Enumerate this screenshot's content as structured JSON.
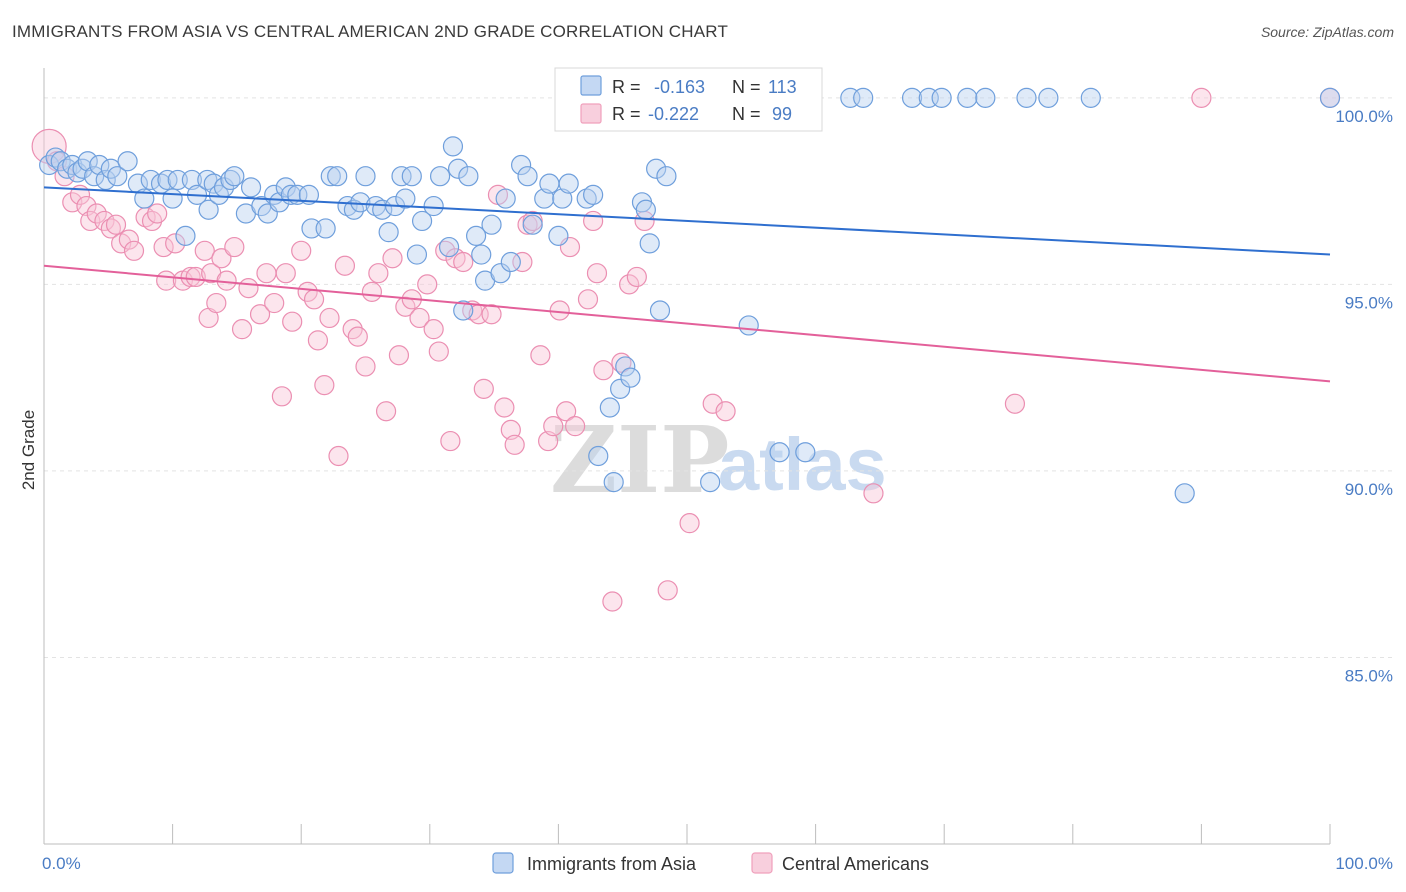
{
  "title": "IMMIGRANTS FROM ASIA VS CENTRAL AMERICAN 2ND GRADE CORRELATION CHART",
  "source": "Source: ZipAtlas.com",
  "colors": {
    "blue": "#6f9fdc",
    "blue_line": "#2f6fcf",
    "pink": "#f0a0bc",
    "pink_line": "#e3609a",
    "tick": "#4a7cc4"
  },
  "legend_box": {
    "rows": [
      {
        "r_label": "R =",
        "r_value": "-0.163",
        "n_label": "N =",
        "n_value": "113"
      },
      {
        "r_label": "R =",
        "r_value": "-0.222",
        "n_label": "N =",
        "n_value": "99"
      }
    ]
  },
  "watermark": {
    "zip": "ZIP",
    "atlas": "atlas"
  },
  "chart_data": {
    "type": "scatter",
    "title": "IMMIGRANTS FROM ASIA VS CENTRAL AMERICAN 2ND GRADE CORRELATION CHART",
    "xlabel": "",
    "ylabel": "2nd Grade",
    "xlim": [
      0,
      100
    ],
    "ylim": [
      80.0,
      100.8
    ],
    "x_tick_labels": [
      "0.0%",
      "100.0%"
    ],
    "y_ticks": [
      85,
      90,
      95,
      100
    ],
    "y_tick_labels": [
      "85.0%",
      "90.0%",
      "95.0%",
      "100.0%"
    ],
    "grid": true,
    "legend_position": "bottom",
    "series": [
      {
        "name": "Immigrants from Asia",
        "color": "#6f9fdc",
        "trend": {
          "x": [
            0,
            100
          ],
          "y": [
            97.6,
            95.8
          ]
        },
        "points": [
          [
            0.4,
            98.2
          ],
          [
            0.9,
            98.4
          ],
          [
            1.3,
            98.3
          ],
          [
            1.8,
            98.1
          ],
          [
            2.2,
            98.2
          ],
          [
            2.6,
            98.0
          ],
          [
            3.0,
            98.1
          ],
          [
            3.4,
            98.3
          ],
          [
            3.9,
            97.9
          ],
          [
            4.3,
            98.2
          ],
          [
            4.8,
            97.8
          ],
          [
            5.2,
            98.1
          ],
          [
            5.7,
            97.9
          ],
          [
            6.5,
            98.3
          ],
          [
            7.3,
            97.7
          ],
          [
            7.8,
            97.3
          ],
          [
            8.3,
            97.8
          ],
          [
            9.1,
            97.7
          ],
          [
            9.6,
            97.8
          ],
          [
            10.0,
            97.3
          ],
          [
            10.4,
            97.8
          ],
          [
            11.0,
            96.3
          ],
          [
            11.5,
            97.8
          ],
          [
            11.9,
            97.4
          ],
          [
            12.7,
            97.8
          ],
          [
            12.8,
            97.0
          ],
          [
            13.2,
            97.7
          ],
          [
            13.6,
            97.4
          ],
          [
            14.0,
            97.6
          ],
          [
            14.5,
            97.8
          ],
          [
            14.8,
            97.9
          ],
          [
            15.7,
            96.9
          ],
          [
            16.1,
            97.6
          ],
          [
            16.9,
            97.1
          ],
          [
            17.4,
            96.9
          ],
          [
            17.9,
            97.4
          ],
          [
            18.3,
            97.2
          ],
          [
            18.8,
            97.6
          ],
          [
            19.2,
            97.4
          ],
          [
            19.7,
            97.4
          ],
          [
            20.6,
            97.4
          ],
          [
            20.8,
            96.5
          ],
          [
            21.9,
            96.5
          ],
          [
            22.3,
            97.9
          ],
          [
            22.8,
            97.9
          ],
          [
            23.6,
            97.1
          ],
          [
            24.1,
            97.0
          ],
          [
            24.6,
            97.2
          ],
          [
            25.0,
            97.9
          ],
          [
            25.8,
            97.1
          ],
          [
            26.3,
            97.0
          ],
          [
            26.8,
            96.4
          ],
          [
            27.3,
            97.1
          ],
          [
            27.8,
            97.9
          ],
          [
            28.1,
            97.3
          ],
          [
            28.6,
            97.9
          ],
          [
            29.0,
            95.8
          ],
          [
            29.4,
            96.7
          ],
          [
            30.3,
            97.1
          ],
          [
            30.8,
            97.9
          ],
          [
            31.5,
            96.0
          ],
          [
            31.8,
            98.7
          ],
          [
            32.2,
            98.1
          ],
          [
            32.6,
            94.3
          ],
          [
            33.0,
            97.9
          ],
          [
            33.6,
            96.3
          ],
          [
            34.0,
            95.8
          ],
          [
            34.3,
            95.1
          ],
          [
            34.8,
            96.6
          ],
          [
            35.5,
            95.3
          ],
          [
            35.9,
            97.3
          ],
          [
            36.3,
            95.6
          ],
          [
            37.1,
            98.2
          ],
          [
            37.6,
            97.9
          ],
          [
            38.0,
            96.6
          ],
          [
            38.9,
            97.3
          ],
          [
            39.3,
            97.7
          ],
          [
            40.0,
            96.3
          ],
          [
            40.3,
            97.3
          ],
          [
            40.8,
            97.7
          ],
          [
            42.2,
            97.3
          ],
          [
            42.7,
            97.4
          ],
          [
            43.1,
            90.4
          ],
          [
            44.0,
            91.7
          ],
          [
            44.3,
            89.7
          ],
          [
            44.8,
            92.2
          ],
          [
            45.2,
            92.8
          ],
          [
            45.6,
            92.5
          ],
          [
            46.0,
            99.9
          ],
          [
            46.5,
            97.2
          ],
          [
            46.8,
            97.0
          ],
          [
            46.3,
            99.9
          ],
          [
            47.1,
            96.1
          ],
          [
            47.6,
            98.1
          ],
          [
            47.9,
            94.3
          ],
          [
            48.4,
            97.9
          ],
          [
            51.8,
            89.7
          ],
          [
            52.1,
            99.9
          ],
          [
            53.2,
            100.0
          ],
          [
            54.0,
            99.4
          ],
          [
            54.8,
            93.9
          ],
          [
            57.2,
            90.5
          ],
          [
            59.2,
            90.5
          ],
          [
            62.7,
            100.0
          ],
          [
            63.7,
            100.0
          ],
          [
            67.5,
            100.0
          ],
          [
            68.8,
            100.0
          ],
          [
            69.8,
            100.0
          ],
          [
            71.8,
            100.0
          ],
          [
            73.2,
            100.0
          ],
          [
            76.4,
            100.0
          ],
          [
            78.1,
            100.0
          ],
          [
            81.4,
            100.0
          ],
          [
            88.7,
            89.4
          ],
          [
            100.0,
            100.0
          ]
        ]
      },
      {
        "name": "Central Americans",
        "color": "#f0a0bc",
        "trend": {
          "x": [
            0,
            100
          ],
          "y": [
            95.5,
            92.4
          ]
        },
        "points": [
          [
            0.4,
            98.7
          ],
          [
            1.0,
            98.3
          ],
          [
            1.6,
            97.9
          ],
          [
            2.2,
            97.2
          ],
          [
            2.8,
            97.4
          ],
          [
            3.3,
            97.1
          ],
          [
            3.6,
            96.7
          ],
          [
            4.1,
            96.9
          ],
          [
            4.7,
            96.7
          ],
          [
            5.2,
            96.5
          ],
          [
            5.6,
            96.6
          ],
          [
            6.0,
            96.1
          ],
          [
            6.6,
            96.2
          ],
          [
            7.0,
            95.9
          ],
          [
            7.9,
            96.8
          ],
          [
            8.4,
            96.7
          ],
          [
            8.8,
            96.9
          ],
          [
            9.3,
            96.0
          ],
          [
            9.5,
            95.1
          ],
          [
            10.2,
            96.1
          ],
          [
            10.8,
            95.1
          ],
          [
            11.4,
            95.2
          ],
          [
            11.8,
            95.2
          ],
          [
            12.5,
            95.9
          ],
          [
            12.8,
            94.1
          ],
          [
            13.0,
            95.3
          ],
          [
            13.4,
            94.5
          ],
          [
            13.8,
            95.7
          ],
          [
            14.2,
            95.1
          ],
          [
            14.8,
            96.0
          ],
          [
            15.4,
            93.8
          ],
          [
            15.9,
            94.9
          ],
          [
            16.8,
            94.2
          ],
          [
            17.3,
            95.3
          ],
          [
            17.9,
            94.5
          ],
          [
            18.5,
            92.0
          ],
          [
            18.8,
            95.3
          ],
          [
            19.3,
            94.0
          ],
          [
            20.0,
            95.9
          ],
          [
            20.5,
            94.8
          ],
          [
            21.0,
            94.6
          ],
          [
            21.3,
            93.5
          ],
          [
            21.8,
            92.3
          ],
          [
            22.2,
            94.1
          ],
          [
            22.9,
            90.4
          ],
          [
            23.4,
            95.5
          ],
          [
            24.0,
            93.8
          ],
          [
            24.4,
            93.6
          ],
          [
            25.0,
            92.8
          ],
          [
            25.5,
            94.8
          ],
          [
            26.0,
            95.3
          ],
          [
            26.6,
            91.6
          ],
          [
            27.1,
            95.7
          ],
          [
            27.6,
            93.1
          ],
          [
            28.1,
            94.4
          ],
          [
            28.6,
            94.6
          ],
          [
            29.2,
            94.1
          ],
          [
            29.8,
            95.0
          ],
          [
            30.3,
            93.8
          ],
          [
            30.7,
            93.2
          ],
          [
            31.2,
            95.9
          ],
          [
            31.6,
            90.8
          ],
          [
            32.0,
            95.7
          ],
          [
            32.6,
            95.6
          ],
          [
            33.3,
            94.3
          ],
          [
            33.8,
            94.2
          ],
          [
            34.2,
            92.2
          ],
          [
            34.8,
            94.2
          ],
          [
            35.3,
            97.4
          ],
          [
            35.8,
            91.7
          ],
          [
            36.3,
            91.1
          ],
          [
            36.6,
            90.7
          ],
          [
            37.2,
            95.6
          ],
          [
            37.6,
            96.6
          ],
          [
            38.0,
            96.7
          ],
          [
            38.6,
            93.1
          ],
          [
            39.2,
            90.8
          ],
          [
            39.6,
            91.2
          ],
          [
            40.1,
            94.3
          ],
          [
            40.6,
            91.6
          ],
          [
            40.9,
            96.0
          ],
          [
            41.3,
            91.2
          ],
          [
            42.3,
            94.6
          ],
          [
            42.7,
            96.7
          ],
          [
            43.0,
            95.3
          ],
          [
            43.5,
            92.7
          ],
          [
            44.2,
            86.5
          ],
          [
            44.9,
            92.9
          ],
          [
            45.5,
            95.0
          ],
          [
            46.1,
            95.2
          ],
          [
            46.7,
            96.7
          ],
          [
            48.5,
            86.8
          ],
          [
            50.2,
            88.6
          ],
          [
            52.0,
            91.8
          ],
          [
            53.0,
            91.6
          ],
          [
            64.5,
            89.4
          ],
          [
            75.5,
            91.8
          ],
          [
            90.0,
            100.0
          ],
          [
            100.0,
            100.0
          ]
        ]
      }
    ]
  },
  "axis": {
    "x_left_label": "0.0%",
    "x_right_label": "100.0%",
    "y_title": "2nd Grade"
  },
  "bottom_legend": [
    {
      "label": "Immigrants from Asia",
      "color": "#6f9fdc"
    },
    {
      "label": "Central Americans",
      "color": "#f0a0bc"
    }
  ]
}
